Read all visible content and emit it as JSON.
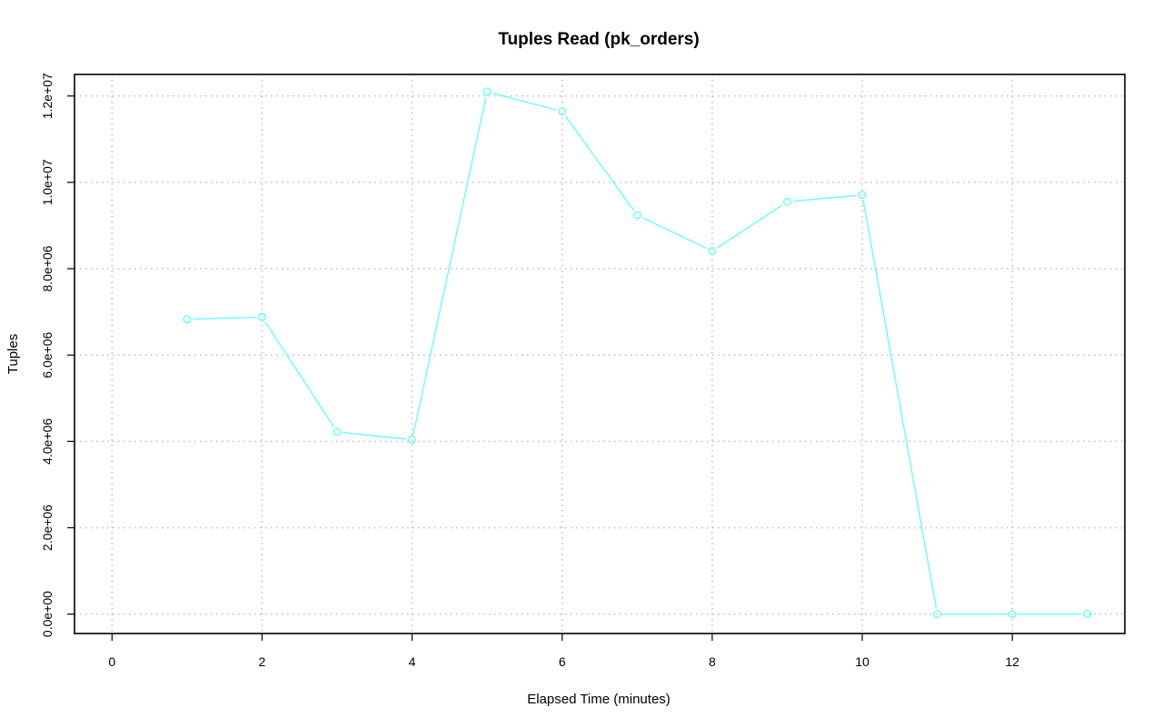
{
  "chart_data": {
    "type": "line",
    "title": "Tuples Read (pk_orders)",
    "xlabel": "Elapsed Time (minutes)",
    "ylabel": "Tuples",
    "xlim": [
      -0.5,
      13.5
    ],
    "ylim": [
      -450000,
      12500000
    ],
    "x_ticks": [
      0,
      2,
      4,
      6,
      8,
      10,
      12
    ],
    "x_tick_labels": [
      "0",
      "2",
      "4",
      "6",
      "8",
      "10",
      "12"
    ],
    "y_ticks": [
      0,
      2000000,
      4000000,
      6000000,
      8000000,
      10000000,
      12000000
    ],
    "y_tick_labels": [
      "0.0e+00",
      "2.0e+06",
      "4.0e+06",
      "6.0e+06",
      "8.0e+06",
      "1.0e+07",
      "1.2e+07"
    ],
    "grid": true,
    "series": [
      {
        "color": "#66ffff",
        "x": [
          1,
          2,
          3,
          4,
          5,
          6,
          7,
          8,
          9,
          10,
          11,
          12,
          13
        ],
        "values": [
          6830000,
          6880000,
          4220000,
          4040000,
          12100000,
          11640000,
          9240000,
          8410000,
          9550000,
          9710000,
          0,
          0,
          0
        ]
      }
    ]
  }
}
